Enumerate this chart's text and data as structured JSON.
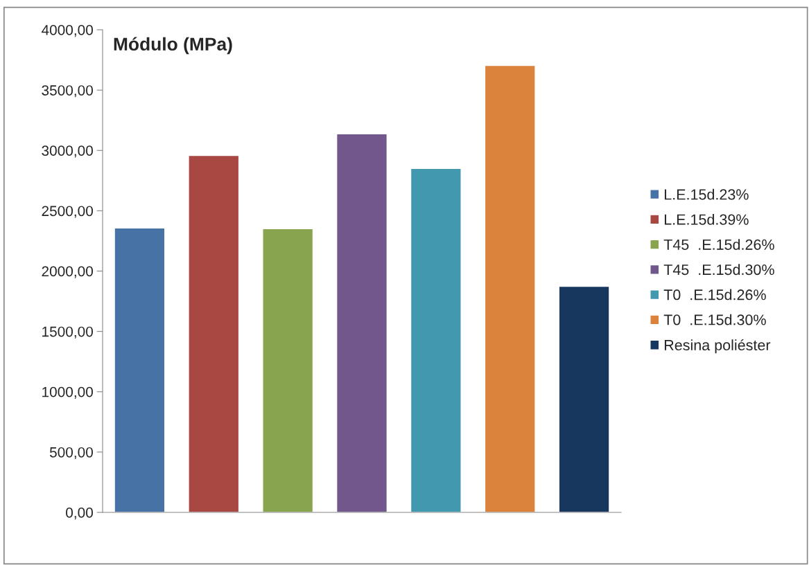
{
  "chart_data": {
    "type": "bar",
    "title": "Módulo (MPa)",
    "categories": [
      null,
      null,
      null,
      null,
      null,
      null,
      null
    ],
    "series": [
      {
        "name": "L.E.15d.23%",
        "color": "#4672a6",
        "values": [
          2357,
          null,
          null,
          null,
          null,
          null,
          null
        ]
      },
      {
        "name": "L.E.15d.39%",
        "color": "#a94743",
        "values": [
          null,
          2958,
          null,
          null,
          null,
          null,
          null
        ]
      },
      {
        "name": "T45  .E.15d.26%",
        "color": "#89a44e",
        "values": [
          null,
          null,
          2351,
          null,
          null,
          null,
          null
        ]
      },
      {
        "name": "T45  .E.15d.30%",
        "color": "#71578c",
        "values": [
          null,
          null,
          null,
          3137,
          null,
          null,
          null
        ]
      },
      {
        "name": "T0  .E.15d.26%",
        "color": "#4198af",
        "values": [
          null,
          null,
          null,
          null,
          2850,
          null,
          null
        ]
      },
      {
        "name": "T0  .E.15d.30%",
        "color": "#db823d",
        "values": [
          null,
          null,
          null,
          null,
          null,
          3704,
          null
        ]
      },
      {
        "name": "Resina poliéster",
        "color": "#17375e",
        "values": [
          null,
          null,
          null,
          null,
          null,
          null,
          1874
        ]
      }
    ],
    "ylim": [
      0,
      4000
    ],
    "yticks": [
      {
        "value": 0,
        "label": "0,00"
      },
      {
        "value": 500,
        "label": "500,00"
      },
      {
        "value": 1000,
        "label": "1000,00"
      },
      {
        "value": 1500,
        "label": "1500,00"
      },
      {
        "value": 2000,
        "label": "2000,00"
      },
      {
        "value": 2500,
        "label": "2500,00"
      },
      {
        "value": 3000,
        "label": "3000,00"
      },
      {
        "value": 3500,
        "label": "3500,00"
      },
      {
        "value": 4000,
        "label": "4000,00"
      }
    ],
    "grid": false,
    "legend": "right"
  }
}
